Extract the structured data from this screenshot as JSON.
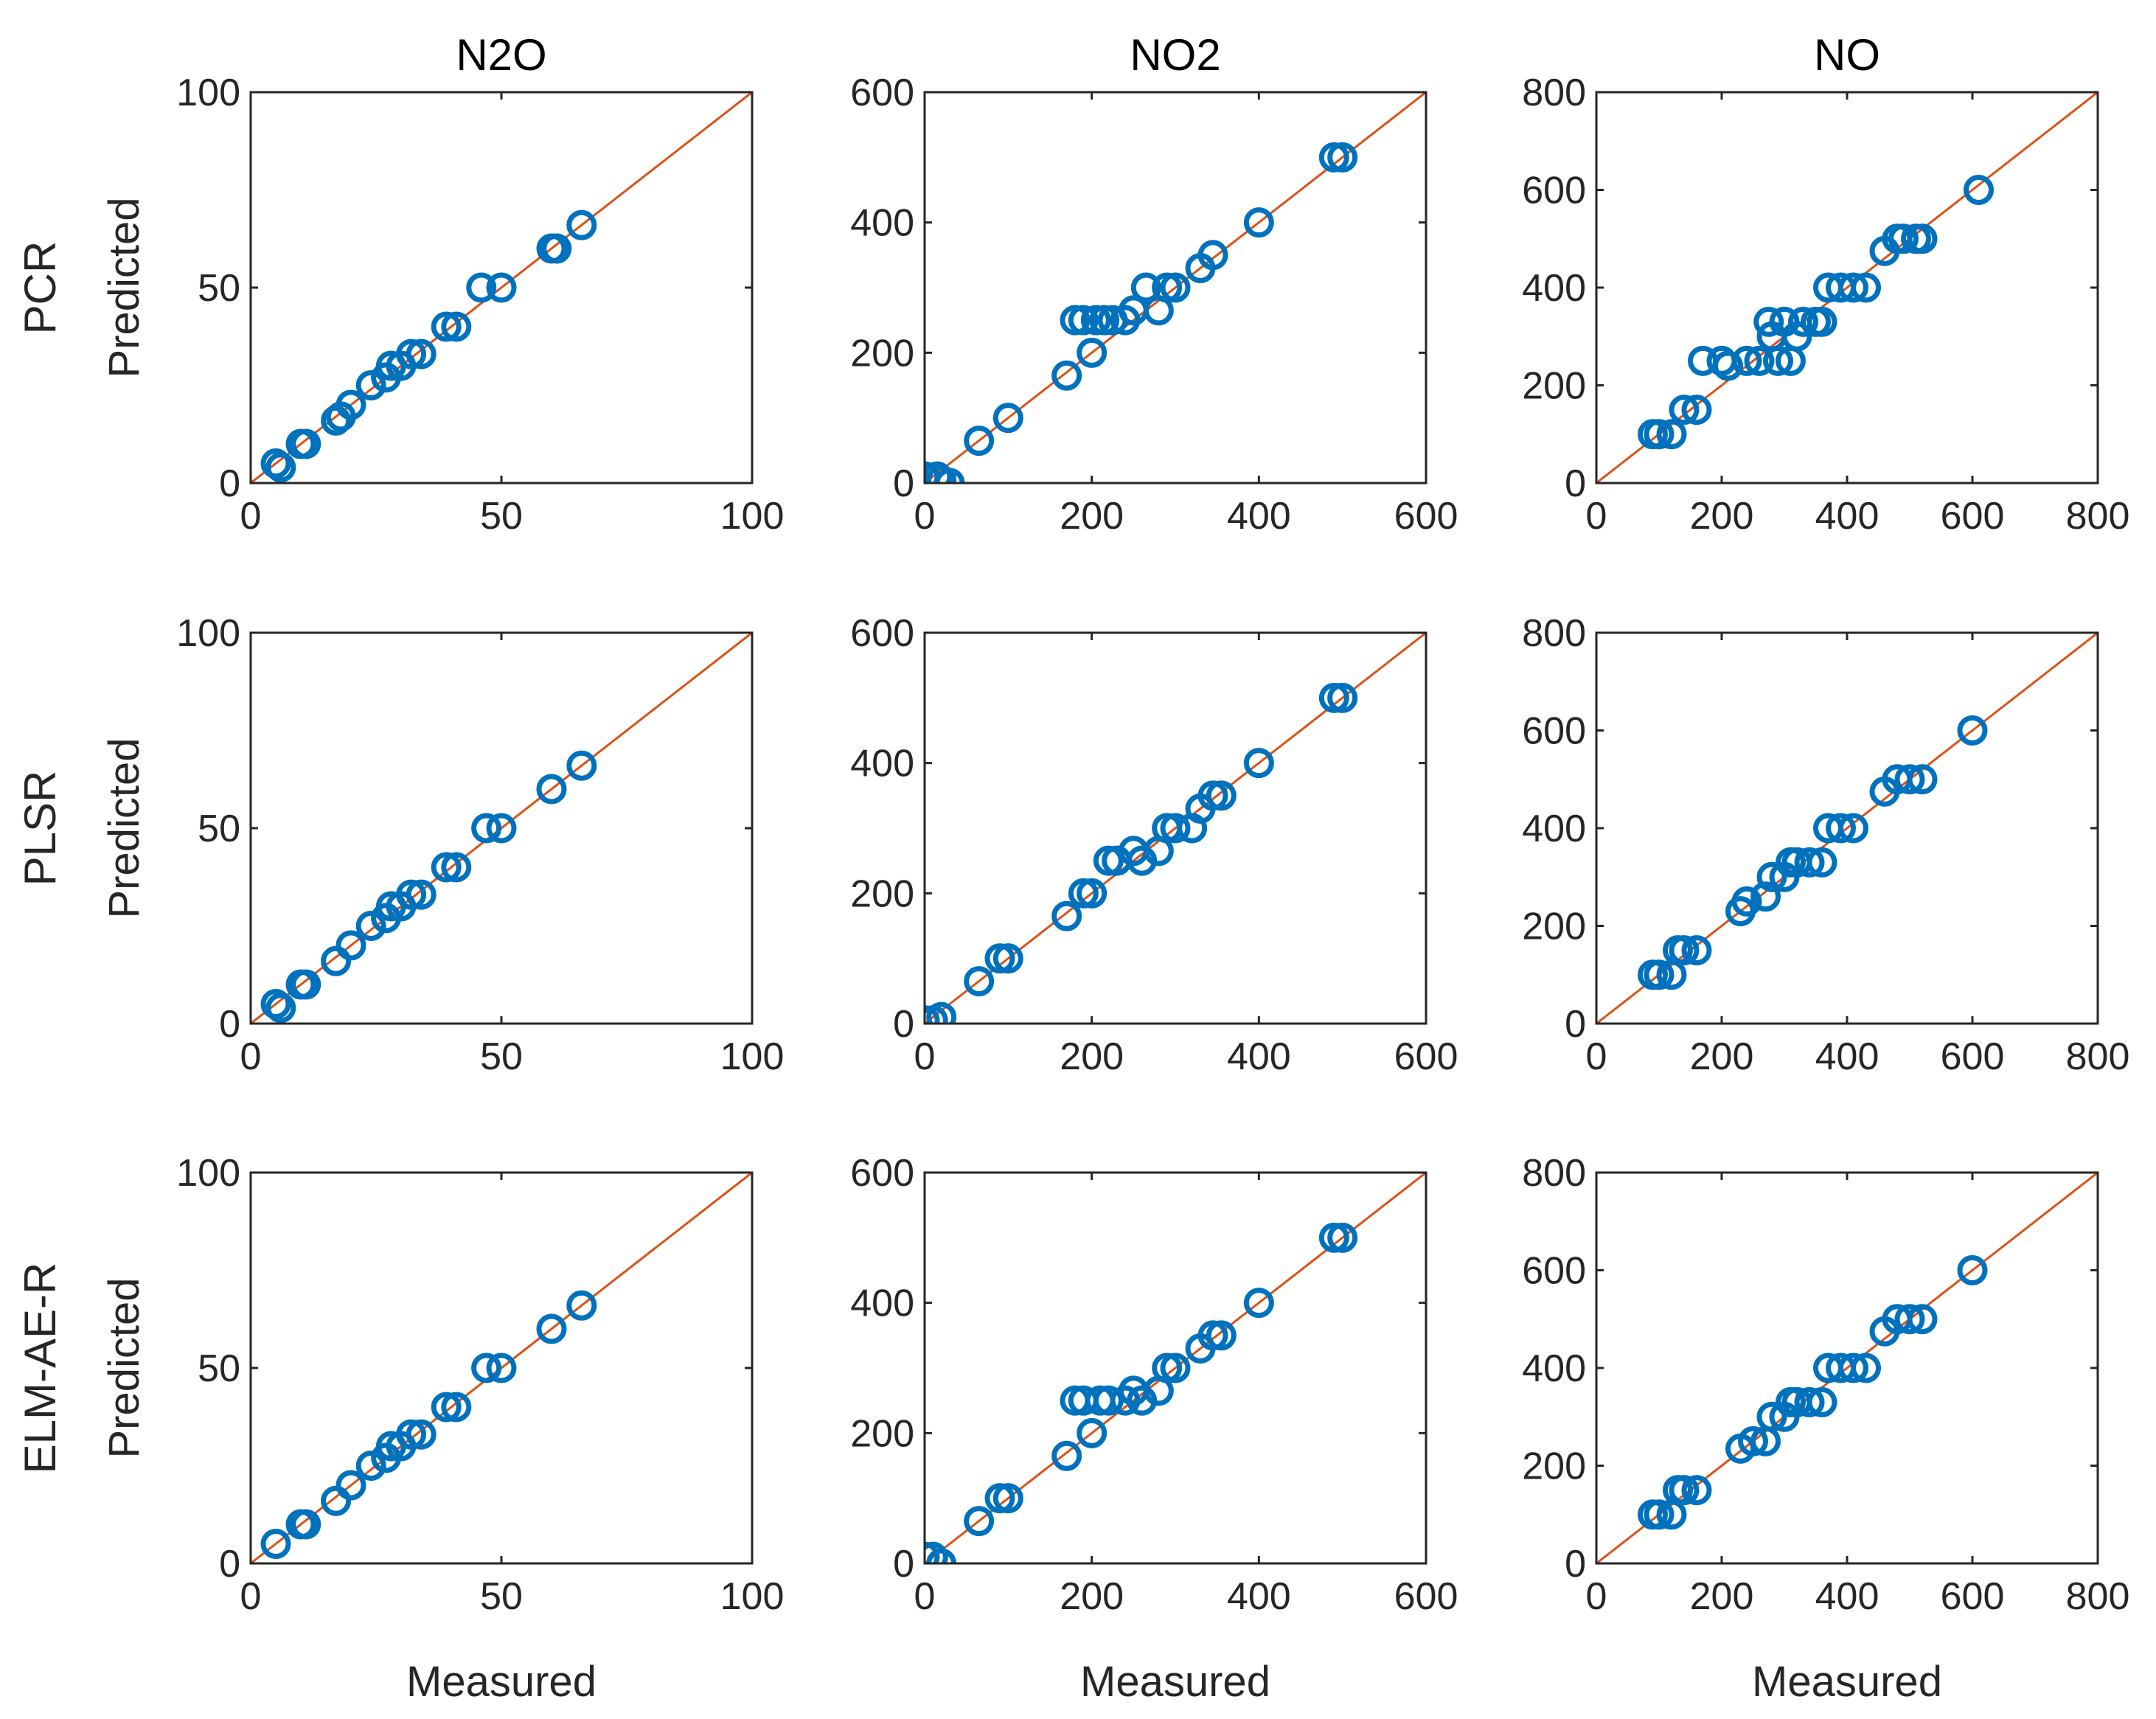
{
  "colors": {
    "marker": "#0072BD",
    "line": "#D95319",
    "axis": "#262626"
  },
  "chart_data": {
    "type": "scatter",
    "columns": [
      "N2O",
      "NO2",
      "NO"
    ],
    "rows": [
      "PCR",
      "PLSR",
      "ELM-AE-R"
    ],
    "xlabel": "Measured",
    "ylabel": "Predicted",
    "axes": {
      "N2O": {
        "lim": [
          0,
          100
        ],
        "ticks": [
          "0",
          "50",
          "100"
        ]
      },
      "NO2": {
        "lim": [
          0,
          600
        ],
        "ticks": [
          "0",
          "200",
          "400",
          "600"
        ]
      },
      "NO": {
        "lim": [
          0,
          800
        ],
        "ticks": [
          "0",
          "200",
          "400",
          "600",
          "800"
        ]
      }
    },
    "panels": [
      {
        "row": "PCR",
        "col": "N2O",
        "points": [
          [
            5,
            5
          ],
          [
            6,
            4
          ],
          [
            10,
            10
          ],
          [
            11,
            10
          ],
          [
            17,
            16
          ],
          [
            18,
            17
          ],
          [
            20,
            20
          ],
          [
            24,
            25
          ],
          [
            27,
            27
          ],
          [
            28,
            30
          ],
          [
            30,
            30
          ],
          [
            32,
            33
          ],
          [
            34,
            33
          ],
          [
            39,
            40
          ],
          [
            41,
            40
          ],
          [
            46,
            50
          ],
          [
            50,
            50
          ],
          [
            60,
            60
          ],
          [
            61,
            60
          ],
          [
            66,
            66
          ]
        ]
      },
      {
        "row": "PCR",
        "col": "NO2",
        "points": [
          [
            0,
            10
          ],
          [
            15,
            10
          ],
          [
            20,
            5
          ],
          [
            30,
            0
          ],
          [
            65,
            65
          ],
          [
            100,
            100
          ],
          [
            170,
            165
          ],
          [
            180,
            250
          ],
          [
            190,
            250
          ],
          [
            200,
            200
          ],
          [
            205,
            250
          ],
          [
            215,
            250
          ],
          [
            225,
            250
          ],
          [
            240,
            250
          ],
          [
            250,
            265
          ],
          [
            265,
            300
          ],
          [
            280,
            265
          ],
          [
            290,
            300
          ],
          [
            300,
            300
          ],
          [
            330,
            330
          ],
          [
            345,
            350
          ],
          [
            400,
            400
          ],
          [
            490,
            500
          ],
          [
            500,
            500
          ]
        ]
      },
      {
        "row": "PCR",
        "col": "NO",
        "points": [
          [
            90,
            100
          ],
          [
            100,
            100
          ],
          [
            120,
            100
          ],
          [
            140,
            150
          ],
          [
            160,
            150
          ],
          [
            170,
            250
          ],
          [
            200,
            250
          ],
          [
            210,
            240
          ],
          [
            240,
            250
          ],
          [
            260,
            250
          ],
          [
            275,
            330
          ],
          [
            280,
            300
          ],
          [
            290,
            250
          ],
          [
            300,
            330
          ],
          [
            310,
            250
          ],
          [
            320,
            300
          ],
          [
            330,
            330
          ],
          [
            350,
            330
          ],
          [
            360,
            330
          ],
          [
            370,
            400
          ],
          [
            390,
            400
          ],
          [
            410,
            400
          ],
          [
            430,
            400
          ],
          [
            460,
            475
          ],
          [
            480,
            500
          ],
          [
            490,
            500
          ],
          [
            510,
            500
          ],
          [
            520,
            500
          ],
          [
            610,
            600
          ]
        ]
      },
      {
        "row": "PLSR",
        "col": "N2O",
        "points": [
          [
            5,
            5
          ],
          [
            6,
            4
          ],
          [
            10,
            10
          ],
          [
            11,
            10
          ],
          [
            17,
            16
          ],
          [
            20,
            20
          ],
          [
            24,
            25
          ],
          [
            27,
            27
          ],
          [
            28,
            30
          ],
          [
            30,
            30
          ],
          [
            32,
            33
          ],
          [
            34,
            33
          ],
          [
            39,
            40
          ],
          [
            41,
            40
          ],
          [
            47,
            50
          ],
          [
            50,
            50
          ],
          [
            60,
            60
          ],
          [
            66,
            66
          ]
        ]
      },
      {
        "row": "PLSR",
        "col": "NO2",
        "points": [
          [
            0,
            5
          ],
          [
            10,
            5
          ],
          [
            20,
            10
          ],
          [
            65,
            65
          ],
          [
            90,
            100
          ],
          [
            100,
            100
          ],
          [
            170,
            165
          ],
          [
            190,
            200
          ],
          [
            200,
            200
          ],
          [
            220,
            250
          ],
          [
            230,
            250
          ],
          [
            250,
            265
          ],
          [
            260,
            250
          ],
          [
            280,
            265
          ],
          [
            290,
            300
          ],
          [
            300,
            300
          ],
          [
            320,
            300
          ],
          [
            330,
            330
          ],
          [
            345,
            350
          ],
          [
            355,
            350
          ],
          [
            400,
            400
          ],
          [
            490,
            500
          ],
          [
            500,
            500
          ]
        ]
      },
      {
        "row": "PLSR",
        "col": "NO",
        "points": [
          [
            90,
            100
          ],
          [
            100,
            100
          ],
          [
            120,
            100
          ],
          [
            130,
            150
          ],
          [
            140,
            150
          ],
          [
            160,
            150
          ],
          [
            230,
            230
          ],
          [
            240,
            250
          ],
          [
            270,
            260
          ],
          [
            280,
            300
          ],
          [
            300,
            300
          ],
          [
            310,
            330
          ],
          [
            320,
            330
          ],
          [
            340,
            330
          ],
          [
            360,
            330
          ],
          [
            370,
            400
          ],
          [
            390,
            400
          ],
          [
            410,
            400
          ],
          [
            460,
            475
          ],
          [
            480,
            500
          ],
          [
            500,
            500
          ],
          [
            520,
            500
          ],
          [
            600,
            600
          ]
        ]
      },
      {
        "row": "ELM-AE-R",
        "col": "N2O",
        "points": [
          [
            5,
            5
          ],
          [
            10,
            10
          ],
          [
            11,
            10
          ],
          [
            17,
            16
          ],
          [
            20,
            20
          ],
          [
            24,
            25
          ],
          [
            27,
            27
          ],
          [
            28,
            30
          ],
          [
            30,
            30
          ],
          [
            32,
            33
          ],
          [
            34,
            33
          ],
          [
            39,
            40
          ],
          [
            41,
            40
          ],
          [
            47,
            50
          ],
          [
            50,
            50
          ],
          [
            60,
            60
          ],
          [
            66,
            66
          ]
        ]
      },
      {
        "row": "ELM-AE-R",
        "col": "NO2",
        "points": [
          [
            0,
            10
          ],
          [
            10,
            10
          ],
          [
            20,
            0
          ],
          [
            65,
            65
          ],
          [
            90,
            100
          ],
          [
            100,
            100
          ],
          [
            170,
            165
          ],
          [
            180,
            250
          ],
          [
            190,
            250
          ],
          [
            200,
            200
          ],
          [
            210,
            250
          ],
          [
            220,
            250
          ],
          [
            240,
            250
          ],
          [
            250,
            265
          ],
          [
            260,
            250
          ],
          [
            280,
            265
          ],
          [
            290,
            300
          ],
          [
            300,
            300
          ],
          [
            330,
            330
          ],
          [
            345,
            350
          ],
          [
            355,
            350
          ],
          [
            400,
            400
          ],
          [
            490,
            500
          ],
          [
            500,
            500
          ]
        ]
      },
      {
        "row": "ELM-AE-R",
        "col": "NO",
        "points": [
          [
            90,
            100
          ],
          [
            100,
            100
          ],
          [
            120,
            100
          ],
          [
            130,
            150
          ],
          [
            140,
            150
          ],
          [
            160,
            150
          ],
          [
            230,
            235
          ],
          [
            250,
            250
          ],
          [
            270,
            250
          ],
          [
            280,
            300
          ],
          [
            300,
            300
          ],
          [
            310,
            330
          ],
          [
            320,
            330
          ],
          [
            340,
            330
          ],
          [
            360,
            330
          ],
          [
            370,
            400
          ],
          [
            390,
            400
          ],
          [
            410,
            400
          ],
          [
            430,
            400
          ],
          [
            460,
            475
          ],
          [
            480,
            500
          ],
          [
            500,
            500
          ],
          [
            520,
            500
          ],
          [
            600,
            600
          ]
        ]
      }
    ]
  }
}
